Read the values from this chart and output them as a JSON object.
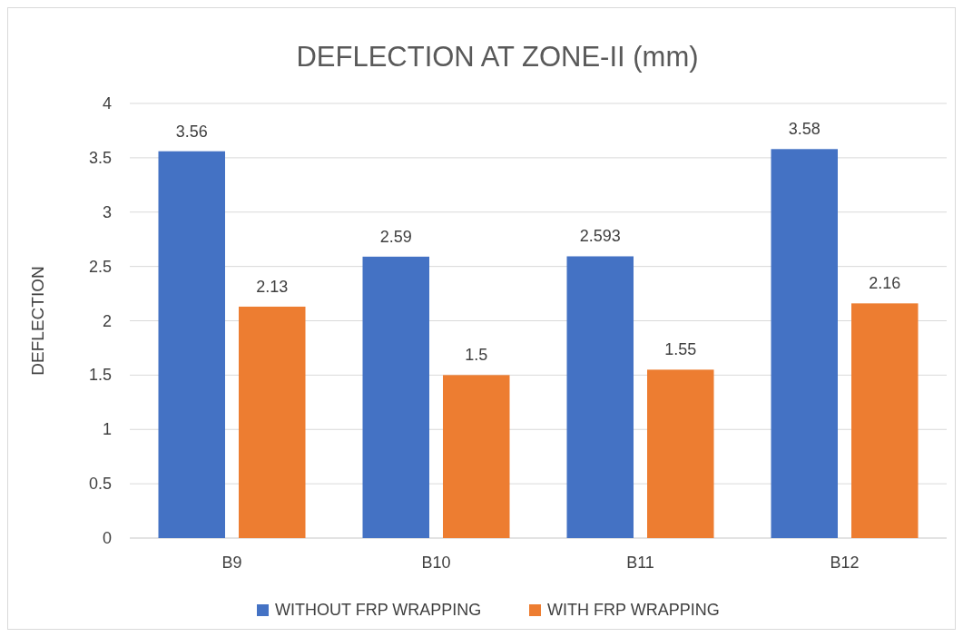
{
  "chart_data": {
    "type": "bar",
    "title": "DEFLECTION AT ZONE-II (mm)",
    "ylabel": "DEFLECTION",
    "categories": [
      "B9",
      "B10",
      "B11",
      "B12"
    ],
    "series": [
      {
        "name": "WITHOUT FRP WRAPPING",
        "color": "#4472c4",
        "values": [
          3.56,
          2.59,
          2.593,
          3.58
        ]
      },
      {
        "name": "WITH FRP WRAPPING",
        "color": "#ed7d31",
        "values": [
          2.13,
          1.5,
          1.55,
          2.16
        ]
      }
    ],
    "ylim": [
      0,
      4
    ],
    "yticks": [
      0,
      0.5,
      1,
      1.5,
      2,
      2.5,
      3,
      3.5,
      4
    ],
    "grid": "y",
    "legend": "bottom",
    "data_labels": true
  }
}
